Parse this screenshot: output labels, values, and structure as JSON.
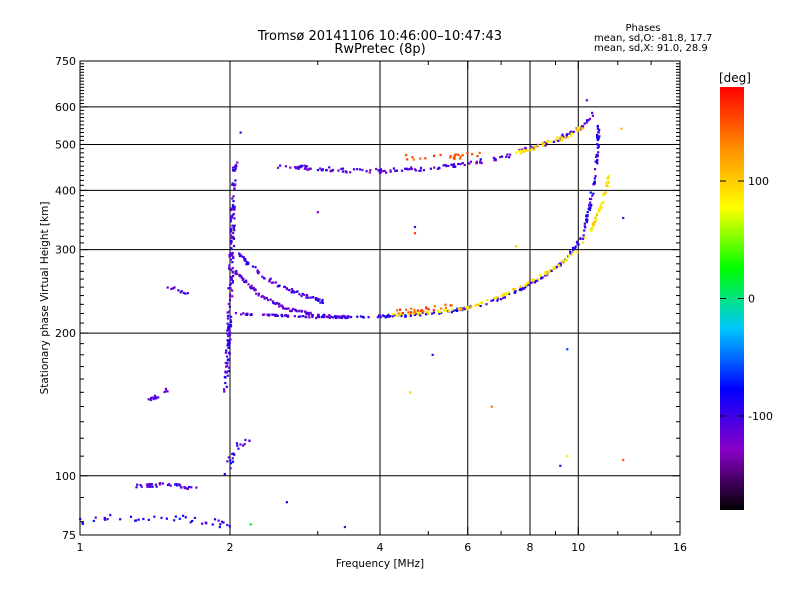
{
  "header": {
    "title_line1": "Tromsø 20141106 10:46:00–10:47:43",
    "title_line2": "RwPretec (8p)"
  },
  "phases_box": {
    "title": "Phases",
    "line_o": "mean, sd,O: -81.8, 17.7",
    "line_x": "mean, sd,X:  91.0, 28.9"
  },
  "chart_data": {
    "type": "scatter",
    "xlabel": "Frequency [MHz]",
    "ylabel": "Stationary phase Virtual Height [km]",
    "xscale": "log",
    "yscale": "log",
    "xlim": [
      1,
      16
    ],
    "ylim": [
      75,
      750
    ],
    "xticks": [
      1,
      2,
      4,
      6,
      8,
      10,
      16
    ],
    "xtick_labels": [
      "1",
      "2",
      "4",
      "6",
      "8",
      "10",
      "16"
    ],
    "xminor": [
      3,
      5,
      7,
      9,
      12,
      14
    ],
    "yticks": [
      75,
      100,
      200,
      300,
      400,
      500,
      600,
      750
    ],
    "ytick_labels": [
      "75",
      "100",
      "200",
      "300",
      "400",
      "500",
      "600",
      "750"
    ],
    "ygrid": [
      100,
      200,
      300,
      400,
      500,
      600
    ],
    "xgrid": [
      2,
      4,
      6,
      8,
      10
    ],
    "grid": true,
    "colorbar": {
      "label": "[deg]",
      "ticks": [
        100,
        0,
        -100
      ],
      "tick_labels": [
        "100",
        "0",
        "-100"
      ],
      "range": [
        -180,
        180
      ],
      "stops": [
        "#000000",
        "#8a00c8",
        "#0000ff",
        "#00c8ff",
        "#00ff00",
        "#ffff00",
        "#ff8c00",
        "#ff0000"
      ]
    },
    "traces": [
      {
        "points": [
          [
            1.95,
            150
          ],
          [
            1.97,
            165
          ],
          [
            1.98,
            180
          ],
          [
            1.99,
            200
          ],
          [
            2.0,
            230
          ],
          [
            2.01,
            270
          ],
          [
            2.02,
            320
          ],
          [
            2.03,
            380
          ],
          [
            2.04,
            430
          ],
          [
            2.05,
            460
          ]
        ],
        "phase": -105,
        "jitter": 0.01,
        "count": 160
      },
      {
        "points": [
          [
            2.05,
            270
          ],
          [
            2.3,
            240
          ],
          [
            2.6,
            225
          ],
          [
            3.0,
            218
          ],
          [
            3.5,
            216
          ]
        ],
        "phase": -110,
        "jitter": 0.006,
        "count": 110
      },
      {
        "points": [
          [
            2.05,
            300
          ],
          [
            2.3,
            265
          ],
          [
            2.6,
            248
          ],
          [
            2.9,
            238
          ],
          [
            3.1,
            232
          ]
        ],
        "phase": -100,
        "jitter": 0.008,
        "count": 70
      },
      {
        "points": [
          [
            2.0,
            220
          ],
          [
            2.5,
            218
          ],
          [
            3.0,
            216
          ],
          [
            3.5,
            216
          ]
        ],
        "phase": -105,
        "jitter": 0.004,
        "count": 60
      },
      {
        "points": [
          [
            3.6,
            216
          ],
          [
            4.5,
            218
          ],
          [
            5.5,
            222
          ],
          [
            6.5,
            230
          ],
          [
            7.5,
            245
          ],
          [
            8.5,
            263
          ],
          [
            9.5,
            288
          ],
          [
            10.2,
            320
          ],
          [
            10.6,
            380
          ],
          [
            10.9,
            470
          ],
          [
            11.0,
            560
          ]
        ],
        "phase": -95,
        "jitter": 0.006,
        "count": 200
      },
      {
        "points": [
          [
            4.2,
            218
          ],
          [
            5.0,
            221
          ],
          [
            6.0,
            226
          ],
          [
            7.0,
            240
          ],
          [
            8.0,
            256
          ],
          [
            9.0,
            275
          ],
          [
            10.0,
            300
          ],
          [
            10.6,
            330
          ],
          [
            11.2,
            380
          ],
          [
            11.6,
            440
          ]
        ],
        "phase": 90,
        "jitter": 0.006,
        "count": 150
      },
      {
        "points": [
          [
            4.3,
            222
          ],
          [
            5.2,
            226
          ],
          [
            5.6,
            229
          ]
        ],
        "phase": 150,
        "jitter": 0.01,
        "count": 25
      },
      {
        "points": [
          [
            2.5,
            450
          ],
          [
            3.0,
            445
          ],
          [
            3.5,
            440
          ],
          [
            4.0,
            440
          ],
          [
            5.0,
            445
          ],
          [
            6.0,
            455
          ],
          [
            7.0,
            470
          ],
          [
            8.0,
            490
          ],
          [
            9.0,
            510
          ],
          [
            10.0,
            540
          ],
          [
            10.8,
            580
          ]
        ],
        "phase": -110,
        "jitter": 0.01,
        "count": 160
      },
      {
        "points": [
          [
            7.5,
            480
          ],
          [
            8.5,
            500
          ],
          [
            9.5,
            520
          ],
          [
            10.2,
            545
          ]
        ],
        "phase": 90,
        "jitter": 0.01,
        "count": 45
      },
      {
        "points": [
          [
            4.5,
            470
          ],
          [
            5.5,
            470
          ],
          [
            6.5,
            480
          ]
        ],
        "phase": 150,
        "jitter": 0.012,
        "count": 25
      },
      {
        "points": [
          [
            1.3,
            95
          ],
          [
            1.5,
            96
          ],
          [
            1.7,
            94
          ]
        ],
        "phase": -100,
        "jitter": 0.008,
        "count": 40
      },
      {
        "points": [
          [
            1.0,
            80
          ],
          [
            1.2,
            82
          ],
          [
            1.5,
            82
          ],
          [
            1.8,
            80
          ],
          [
            2.0,
            79
          ]
        ],
        "phase": -90,
        "jitter": 0.02,
        "count": 40
      },
      {
        "points": [
          [
            1.38,
            145
          ],
          [
            1.45,
            148
          ],
          [
            1.5,
            152
          ]
        ],
        "phase": -110,
        "jitter": 0.008,
        "count": 15
      },
      {
        "points": [
          [
            1.5,
            250
          ],
          [
            1.65,
            243
          ]
        ],
        "phase": -110,
        "jitter": 0.008,
        "count": 10
      },
      {
        "points": [
          [
            1.95,
            100
          ],
          [
            2.05,
            115
          ],
          [
            2.2,
            120
          ]
        ],
        "phase": -95,
        "jitter": 0.015,
        "count": 20
      }
    ],
    "scatter_points": [
      {
        "x": 2.1,
        "y": 530,
        "phase": -110
      },
      {
        "x": 3.0,
        "y": 360,
        "phase": -120
      },
      {
        "x": 4.7,
        "y": 335,
        "phase": -110
      },
      {
        "x": 4.7,
        "y": 325,
        "phase": 160
      },
      {
        "x": 5.1,
        "y": 180,
        "phase": -100
      },
      {
        "x": 4.6,
        "y": 150,
        "phase": 100
      },
      {
        "x": 6.7,
        "y": 140,
        "phase": 140
      },
      {
        "x": 9.5,
        "y": 185,
        "phase": -60
      },
      {
        "x": 9.5,
        "y": 110,
        "phase": 70
      },
      {
        "x": 9.2,
        "y": 105,
        "phase": -100
      },
      {
        "x": 10.4,
        "y": 620,
        "phase": -120
      },
      {
        "x": 12.2,
        "y": 540,
        "phase": 110
      },
      {
        "x": 12.3,
        "y": 350,
        "phase": -110
      },
      {
        "x": 12.3,
        "y": 108,
        "phase": 150
      },
      {
        "x": 7.5,
        "y": 305,
        "phase": 100
      },
      {
        "x": 3.4,
        "y": 78,
        "phase": -110
      },
      {
        "x": 2.6,
        "y": 88,
        "phase": -90
      },
      {
        "x": 2.2,
        "y": 79,
        "phase": 20
      }
    ]
  }
}
